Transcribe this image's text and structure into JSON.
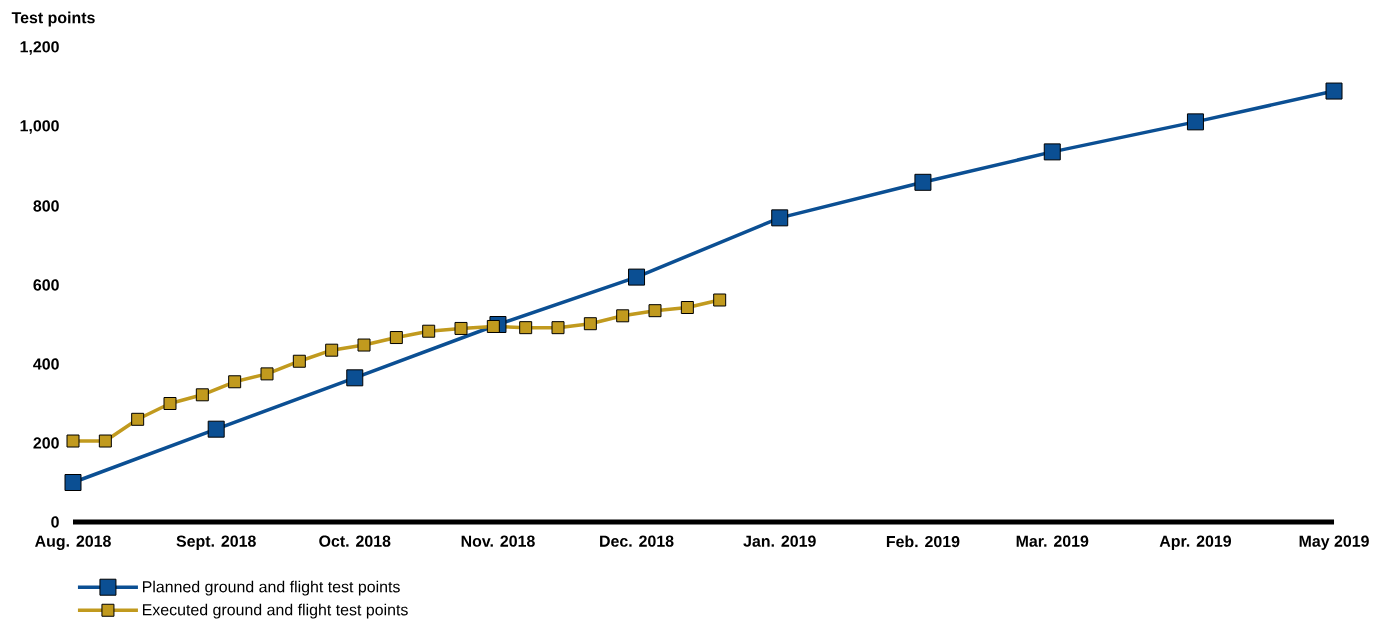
{
  "chart_data": {
    "type": "line",
    "ylabel": "Test points",
    "xlim": [
      "2018-08",
      "2019-05"
    ],
    "xticks": [
      {
        "value": "2018-08",
        "label": "Aug. 2018"
      },
      {
        "value": "2018-09",
        "label": "Sept. 2018"
      },
      {
        "value": "2018-10",
        "label": "Oct. 2018"
      },
      {
        "value": "2018-11",
        "label": "Nov. 2018"
      },
      {
        "value": "2018-12",
        "label": "Dec. 2018"
      },
      {
        "value": "2019-01",
        "label": "Jan. 2019"
      },
      {
        "value": "2019-02",
        "label": "Feb. 2019"
      },
      {
        "value": "2019-03",
        "label": "Mar. 2019"
      },
      {
        "value": "2019-04",
        "label": "Apr. 2019"
      },
      {
        "value": "2019-05",
        "label": "May 2019"
      }
    ],
    "ylim": [
      0,
      1200
    ],
    "yticks": [
      {
        "value": 0,
        "label": "0"
      },
      {
        "value": 200,
        "label": "200"
      },
      {
        "value": 400,
        "label": "400"
      },
      {
        "value": 600,
        "label": "600"
      },
      {
        "value": 800,
        "label": "800"
      },
      {
        "value": 1000,
        "label": "1,000"
      },
      {
        "value": 1200,
        "label": "1,200"
      }
    ],
    "series": [
      {
        "name": "Planned ground and flight test points",
        "color": "#0b4f93",
        "x": [
          "2018-08",
          "2018-09",
          "2018-10",
          "2018-11",
          "2018-12",
          "2019-01",
          "2019-02",
          "2019-03",
          "2019-04",
          "2019-05"
        ],
        "values": [
          100,
          235,
          365,
          500,
          620,
          770,
          860,
          937,
          1013,
          1091
        ]
      },
      {
        "name": "Executed ground and flight test points",
        "color": "#c19a1e",
        "x": [
          "2018-08-01",
          "2018-08-08",
          "2018-08-15",
          "2018-08-22",
          "2018-08-29",
          "2018-09-05",
          "2018-09-12",
          "2018-09-19",
          "2018-09-26",
          "2018-10-03",
          "2018-10-10",
          "2018-10-17",
          "2018-10-24",
          "2018-10-31",
          "2018-11-07",
          "2018-11-14",
          "2018-11-21",
          "2018-11-28",
          "2018-12-05",
          "2018-12-12",
          "2018-12-19"
        ],
        "values": [
          205,
          205,
          260,
          300,
          322,
          355,
          375,
          407,
          435,
          448,
          467,
          483,
          490,
          495,
          492,
          492,
          502,
          522,
          535,
          543,
          562
        ]
      }
    ],
    "marker": "square",
    "grid": false,
    "legend": "bottom left"
  }
}
